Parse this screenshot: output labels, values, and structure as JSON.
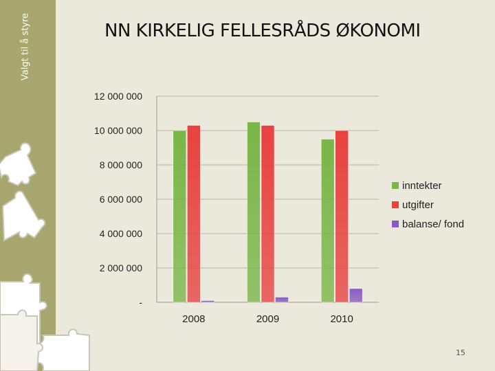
{
  "slide": {
    "sidebar_text": "Valgt til å styre",
    "title": "NN KIRKELIG FELLESRÅDS ØKONOMI",
    "page_number": "15"
  },
  "chart_data": {
    "type": "bar",
    "title": "",
    "xlabel": "",
    "ylabel": "",
    "categories": [
      "2008",
      "2009",
      "2010"
    ],
    "ylim": [
      0,
      12000000
    ],
    "yticks": [
      {
        "value": 0,
        "label": "-"
      },
      {
        "value": 2000000,
        "label": "2 000 000"
      },
      {
        "value": 4000000,
        "label": "4 000 000"
      },
      {
        "value": 6000000,
        "label": "6 000 000"
      },
      {
        "value": 8000000,
        "label": "8 000 000"
      },
      {
        "value": 10000000,
        "label": "10 000 000"
      },
      {
        "value": 12000000,
        "label": "12 000 000"
      }
    ],
    "grid": true,
    "legend": "right",
    "series": [
      {
        "name": "inntekter",
        "color": "#7ab648",
        "values": [
          10000000,
          10500000,
          9500000
        ]
      },
      {
        "name": "utgifter",
        "color": "#e8423f",
        "values": [
          10300000,
          10300000,
          10000000
        ]
      },
      {
        "name": "balanse/ fond",
        "color": "#8a5bc4",
        "values": [
          100000,
          300000,
          800000
        ]
      }
    ]
  }
}
